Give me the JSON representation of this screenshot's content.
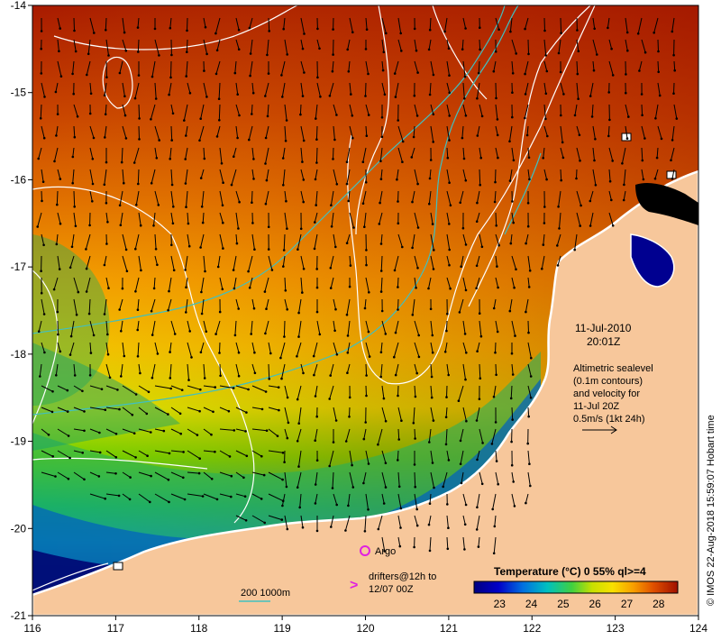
{
  "map": {
    "lon_ticks": [
      "116",
      "117",
      "118",
      "119",
      "120",
      "121",
      "122",
      "123",
      "124"
    ],
    "lat_ticks": [
      "-14",
      "-15",
      "-16",
      "-17",
      "-18",
      "-19",
      "-20",
      "-21"
    ],
    "lon_range": [
      116,
      124
    ],
    "lat_range": [
      -21,
      -14
    ]
  },
  "annotation": {
    "date": "11-Jul-2010",
    "time": "20:01Z",
    "desc_lines": [
      "Altimetric sealevel",
      "(0.1m contours)",
      "and velocity for",
      "11-Jul 20Z",
      "0.5m/s (1kt 24h)"
    ]
  },
  "legend": {
    "argo": "Argo",
    "drifters_line1": "drifters@12h to",
    "drifters_line2": "12/07 00Z",
    "isobath": "200  1000m"
  },
  "colorbar": {
    "title": "Temperature (°C) 0 55% ql>=4",
    "ticks": [
      "23",
      "24",
      "25",
      "26",
      "27",
      "28"
    ],
    "range": [
      22.2,
      28.6
    ]
  },
  "credit": "© IMOS 22-Aug-2018 15:59:07 Hobart time",
  "colors": {
    "land": "#f7c79b",
    "argo": "#e020e0",
    "isobath": "#40c0c0",
    "contour": "#ffffff"
  }
}
